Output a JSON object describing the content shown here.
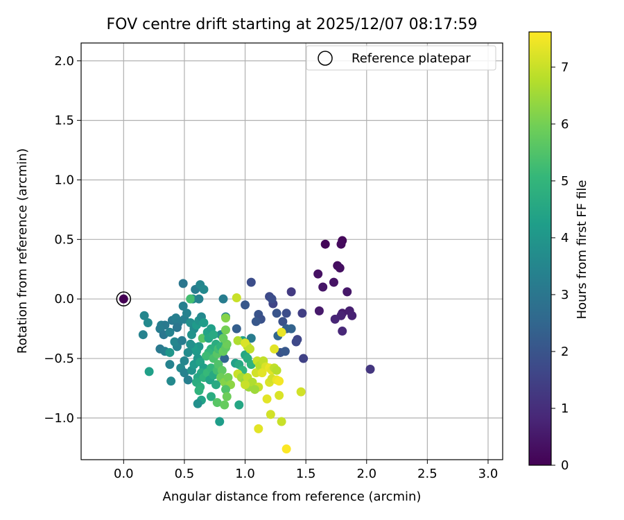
{
  "chart_data": {
    "type": "scatter",
    "title": "FOV centre drift starting at 2025/12/07 08:17:59",
    "xlabel": "Angular distance from reference (arcmin)",
    "ylabel": "Rotation from reference (arcmin)",
    "xlim": [
      -0.35,
      3.12
    ],
    "ylim": [
      -1.35,
      2.15
    ],
    "xticks": [
      0.0,
      0.5,
      1.0,
      1.5,
      2.0,
      2.5,
      3.0
    ],
    "xtick_labels": [
      "0.0",
      "0.5",
      "1.0",
      "1.5",
      "2.0",
      "2.5",
      "3.0"
    ],
    "yticks": [
      -1.0,
      -0.5,
      0.0,
      0.5,
      1.0,
      1.5,
      2.0
    ],
    "ytick_labels": [
      "−1.0",
      "−0.5",
      "0.0",
      "0.5",
      "1.0",
      "1.5",
      "2.0"
    ],
    "grid": true,
    "legend": {
      "position": "top-right",
      "entries": [
        "Reference platepar"
      ]
    },
    "reference_point": {
      "x": 0.0,
      "y": 0.0,
      "c": 0.0
    },
    "colorbar": {
      "label": "Hours from first FF file",
      "range": [
        0,
        7.62
      ],
      "ticks": [
        0,
        1,
        2,
        3,
        4,
        5,
        6,
        7
      ],
      "tick_labels": [
        "0",
        "1",
        "2",
        "3",
        "4",
        "5",
        "6",
        "7"
      ],
      "colormap": "viridis",
      "colors": [
        "#440154",
        "#482878",
        "#3e4989",
        "#31688e",
        "#26828e",
        "#1f9e89",
        "#35b779",
        "#6ece58",
        "#b5de2b",
        "#fde725"
      ]
    },
    "points": [
      {
        "x": 1.66,
        "y": 0.46,
        "c": 0.1
      },
      {
        "x": 1.8,
        "y": 0.49,
        "c": 0.15
      },
      {
        "x": 1.79,
        "y": 0.46,
        "c": 0.2
      },
      {
        "x": 1.76,
        "y": 0.28,
        "c": 0.25
      },
      {
        "x": 1.78,
        "y": 0.26,
        "c": 0.3
      },
      {
        "x": 1.6,
        "y": 0.21,
        "c": 0.35
      },
      {
        "x": 1.73,
        "y": 0.14,
        "c": 0.4
      },
      {
        "x": 1.64,
        "y": 0.1,
        "c": 0.45
      },
      {
        "x": 1.84,
        "y": 0.06,
        "c": 0.5
      },
      {
        "x": 1.61,
        "y": -0.1,
        "c": 0.55
      },
      {
        "x": 1.8,
        "y": -0.12,
        "c": 0.6
      },
      {
        "x": 1.86,
        "y": -0.1,
        "c": 0.65
      },
      {
        "x": 1.88,
        "y": -0.14,
        "c": 0.7
      },
      {
        "x": 1.79,
        "y": -0.14,
        "c": 0.75
      },
      {
        "x": 1.74,
        "y": -0.17,
        "c": 0.8
      },
      {
        "x": 1.8,
        "y": -0.27,
        "c": 0.85
      },
      {
        "x": 2.03,
        "y": -0.59,
        "c": 1.2
      },
      {
        "x": 1.38,
        "y": 0.06,
        "c": 1.3
      },
      {
        "x": 1.47,
        "y": -0.12,
        "c": 1.4
      },
      {
        "x": 1.48,
        "y": -0.5,
        "c": 1.5
      },
      {
        "x": 1.43,
        "y": -0.34,
        "c": 1.6
      },
      {
        "x": 1.42,
        "y": -0.36,
        "c": 1.7
      },
      {
        "x": 1.34,
        "y": -0.12,
        "c": 1.8
      },
      {
        "x": 1.31,
        "y": -0.19,
        "c": 1.9
      },
      {
        "x": 1.29,
        "y": -0.45,
        "c": 2.0
      },
      {
        "x": 1.33,
        "y": -0.44,
        "c": 2.1
      },
      {
        "x": 1.23,
        "y": -0.04,
        "c": 1.6
      },
      {
        "x": 1.2,
        "y": 0.02,
        "c": 1.7
      },
      {
        "x": 1.22,
        "y": 0.0,
        "c": 1.8
      },
      {
        "x": 1.26,
        "y": -0.12,
        "c": 2.0
      },
      {
        "x": 1.11,
        "y": -0.13,
        "c": 2.0
      },
      {
        "x": 1.13,
        "y": -0.17,
        "c": 1.9
      },
      {
        "x": 1.09,
        "y": -0.19,
        "c": 2.1
      },
      {
        "x": 1.34,
        "y": -0.25,
        "c": 2.3
      },
      {
        "x": 1.38,
        "y": -0.25,
        "c": 2.4
      },
      {
        "x": 1.27,
        "y": -0.31,
        "c": 2.5
      },
      {
        "x": 1.05,
        "y": 0.14,
        "c": 1.8
      },
      {
        "x": 1.0,
        "y": -0.05,
        "c": 2.1
      },
      {
        "x": 0.93,
        "y": -0.25,
        "c": 2.3
      },
      {
        "x": 0.83,
        "y": -0.5,
        "c": 2.5
      },
      {
        "x": 0.82,
        "y": 0.0,
        "c": 3.2
      },
      {
        "x": 0.84,
        "y": -0.15,
        "c": 3.4
      },
      {
        "x": 0.8,
        "y": -0.3,
        "c": 3.6
      },
      {
        "x": 0.49,
        "y": 0.13,
        "c": 3.0
      },
      {
        "x": 0.59,
        "y": 0.08,
        "c": 3.2
      },
      {
        "x": 0.63,
        "y": 0.12,
        "c": 3.5
      },
      {
        "x": 0.66,
        "y": 0.08,
        "c": 3.6
      },
      {
        "x": 0.57,
        "y": 0.0,
        "c": 3.7
      },
      {
        "x": 0.55,
        "y": 0.0,
        "c": 5.3
      },
      {
        "x": 0.62,
        "y": 0.0,
        "c": 3.4
      },
      {
        "x": 0.49,
        "y": -0.06,
        "c": 3.3
      },
      {
        "x": 0.17,
        "y": -0.14,
        "c": 3.5
      },
      {
        "x": 0.2,
        "y": -0.2,
        "c": 3.6
      },
      {
        "x": 0.16,
        "y": -0.3,
        "c": 3.4
      },
      {
        "x": 0.31,
        "y": -0.22,
        "c": 3.3
      },
      {
        "x": 0.34,
        "y": -0.22,
        "c": 3.1
      },
      {
        "x": 0.3,
        "y": -0.25,
        "c": 3.2
      },
      {
        "x": 0.33,
        "y": -0.3,
        "c": 3.0
      },
      {
        "x": 0.4,
        "y": -0.18,
        "c": 3.1
      },
      {
        "x": 0.43,
        "y": -0.16,
        "c": 3.3
      },
      {
        "x": 0.45,
        "y": -0.2,
        "c": 3.2
      },
      {
        "x": 0.38,
        "y": -0.28,
        "c": 3.4
      },
      {
        "x": 0.44,
        "y": -0.24,
        "c": 3.0
      },
      {
        "x": 0.3,
        "y": -0.42,
        "c": 3.1
      },
      {
        "x": 0.34,
        "y": -0.44,
        "c": 3.3
      },
      {
        "x": 0.38,
        "y": -0.45,
        "c": 4.0
      },
      {
        "x": 0.44,
        "y": -0.4,
        "c": 3.4
      },
      {
        "x": 0.42,
        "y": -0.36,
        "c": 3.5
      },
      {
        "x": 0.48,
        "y": -0.35,
        "c": 3.2
      },
      {
        "x": 0.5,
        "y": -0.17,
        "c": 3.3
      },
      {
        "x": 0.52,
        "y": -0.12,
        "c": 3.4
      },
      {
        "x": 0.55,
        "y": -0.2,
        "c": 3.8
      },
      {
        "x": 0.58,
        "y": -0.25,
        "c": 3.7
      },
      {
        "x": 0.56,
        "y": -0.3,
        "c": 3.9
      },
      {
        "x": 0.6,
        "y": -0.22,
        "c": 4.1
      },
      {
        "x": 0.62,
        "y": -0.18,
        "c": 3.9
      },
      {
        "x": 0.64,
        "y": -0.15,
        "c": 3.6
      },
      {
        "x": 0.66,
        "y": -0.2,
        "c": 4.2
      },
      {
        "x": 0.65,
        "y": -0.33,
        "c": 5.6
      },
      {
        "x": 0.69,
        "y": -0.28,
        "c": 4.4
      },
      {
        "x": 0.7,
        "y": -0.33,
        "c": 4.5
      },
      {
        "x": 0.72,
        "y": -0.25,
        "c": 4.3
      },
      {
        "x": 0.74,
        "y": -0.3,
        "c": 4.6
      },
      {
        "x": 0.76,
        "y": -0.38,
        "c": 4.7
      },
      {
        "x": 0.72,
        "y": -0.42,
        "c": 4.8
      },
      {
        "x": 0.7,
        "y": -0.45,
        "c": 5.0
      },
      {
        "x": 0.68,
        "y": -0.48,
        "c": 5.2
      },
      {
        "x": 0.74,
        "y": -0.5,
        "c": 5.4
      },
      {
        "x": 0.77,
        "y": -0.46,
        "c": 5.6
      },
      {
        "x": 0.78,
        "y": -0.42,
        "c": 5.3
      },
      {
        "x": 0.8,
        "y": -0.4,
        "c": 4.9
      },
      {
        "x": 0.82,
        "y": -0.44,
        "c": 5.8
      },
      {
        "x": 0.84,
        "y": -0.41,
        "c": 5.7
      },
      {
        "x": 0.85,
        "y": -0.38,
        "c": 5.9
      },
      {
        "x": 0.82,
        "y": -0.33,
        "c": 5.8
      },
      {
        "x": 0.84,
        "y": -0.26,
        "c": 6.0
      },
      {
        "x": 0.84,
        "y": -0.16,
        "c": 6.2
      },
      {
        "x": 0.62,
        "y": -0.4,
        "c": 4.0
      },
      {
        "x": 0.6,
        "y": -0.44,
        "c": 4.1
      },
      {
        "x": 0.57,
        "y": -0.4,
        "c": 4.2
      },
      {
        "x": 0.55,
        "y": -0.38,
        "c": 3.8
      },
      {
        "x": 0.53,
        "y": -0.45,
        "c": 3.7
      },
      {
        "x": 0.5,
        "y": -0.52,
        "c": 3.5
      },
      {
        "x": 0.47,
        "y": -0.58,
        "c": 3.6
      },
      {
        "x": 0.5,
        "y": -0.62,
        "c": 3.4
      },
      {
        "x": 0.53,
        "y": -0.68,
        "c": 3.3
      },
      {
        "x": 0.56,
        "y": -0.6,
        "c": 3.9
      },
      {
        "x": 0.58,
        "y": -0.55,
        "c": 4.1
      },
      {
        "x": 0.61,
        "y": -0.5,
        "c": 4.0
      },
      {
        "x": 0.63,
        "y": -0.53,
        "c": 4.4
      },
      {
        "x": 0.66,
        "y": -0.58,
        "c": 4.3
      },
      {
        "x": 0.64,
        "y": -0.62,
        "c": 4.6
      },
      {
        "x": 0.61,
        "y": -0.66,
        "c": 4.5
      },
      {
        "x": 0.6,
        "y": -0.7,
        "c": 4.7
      },
      {
        "x": 0.63,
        "y": -0.74,
        "c": 4.8
      },
      {
        "x": 0.66,
        "y": -0.66,
        "c": 4.9
      },
      {
        "x": 0.69,
        "y": -0.62,
        "c": 5.1
      },
      {
        "x": 0.72,
        "y": -0.58,
        "c": 5.0
      },
      {
        "x": 0.71,
        "y": -0.68,
        "c": 4.4
      },
      {
        "x": 0.74,
        "y": -0.64,
        "c": 4.6
      },
      {
        "x": 0.77,
        "y": -0.6,
        "c": 5.3
      },
      {
        "x": 0.78,
        "y": -0.55,
        "c": 5.5
      },
      {
        "x": 0.81,
        "y": -0.6,
        "c": 5.7
      },
      {
        "x": 0.8,
        "y": -0.66,
        "c": 5.9
      },
      {
        "x": 0.83,
        "y": -0.7,
        "c": 6.2
      },
      {
        "x": 0.86,
        "y": -0.66,
        "c": 6.0
      },
      {
        "x": 0.88,
        "y": -0.72,
        "c": 6.3
      },
      {
        "x": 0.84,
        "y": -0.76,
        "c": 5.5
      },
      {
        "x": 0.76,
        "y": -0.72,
        "c": 4.6
      },
      {
        "x": 0.72,
        "y": -0.82,
        "c": 4.7
      },
      {
        "x": 0.62,
        "y": -0.77,
        "c": 4.9
      },
      {
        "x": 0.64,
        "y": -0.85,
        "c": 4.4
      },
      {
        "x": 0.61,
        "y": -0.88,
        "c": 3.8
      },
      {
        "x": 0.77,
        "y": -0.87,
        "c": 5.6
      },
      {
        "x": 0.83,
        "y": -0.89,
        "c": 5.8
      },
      {
        "x": 0.85,
        "y": -0.82,
        "c": 5.9
      },
      {
        "x": 0.79,
        "y": -1.03,
        "c": 4.2
      },
      {
        "x": 0.95,
        "y": -0.89,
        "c": 4.5
      },
      {
        "x": 0.39,
        "y": -0.69,
        "c": 3.6
      },
      {
        "x": 0.21,
        "y": -0.61,
        "c": 4.3
      },
      {
        "x": 0.38,
        "y": -0.55,
        "c": 3.4
      },
      {
        "x": 0.92,
        "y": -0.54,
        "c": 4.3
      },
      {
        "x": 0.95,
        "y": -0.55,
        "c": 4.6
      },
      {
        "x": 0.98,
        "y": -0.6,
        "c": 5.0
      },
      {
        "x": 1.0,
        "y": -0.47,
        "c": 4.5
      },
      {
        "x": 1.02,
        "y": -0.5,
        "c": 4.7
      },
      {
        "x": 1.05,
        "y": -0.55,
        "c": 4.9
      },
      {
        "x": 0.98,
        "y": -0.35,
        "c": 4.4
      },
      {
        "x": 0.94,
        "y": -0.35,
        "c": 6.7
      },
      {
        "x": 1.02,
        "y": -0.4,
        "c": 6.8
      },
      {
        "x": 1.05,
        "y": -0.33,
        "c": 3.2
      },
      {
        "x": 0.93,
        "y": 0.01,
        "c": 7.0
      },
      {
        "x": 1.0,
        "y": -0.37,
        "c": 7.2
      },
      {
        "x": 1.04,
        "y": -0.42,
        "c": 6.9
      },
      {
        "x": 0.94,
        "y": -0.63,
        "c": 7.0
      },
      {
        "x": 0.97,
        "y": -0.66,
        "c": 6.6
      },
      {
        "x": 1.0,
        "y": -0.7,
        "c": 6.4
      },
      {
        "x": 1.02,
        "y": -0.66,
        "c": 6.9
      },
      {
        "x": 1.03,
        "y": -0.74,
        "c": 6.5
      },
      {
        "x": 1.06,
        "y": -0.7,
        "c": 6.7
      },
      {
        "x": 1.09,
        "y": -0.62,
        "c": 7.1
      },
      {
        "x": 1.1,
        "y": -0.52,
        "c": 7.0
      },
      {
        "x": 1.12,
        "y": -0.56,
        "c": 6.8
      },
      {
        "x": 1.15,
        "y": -0.52,
        "c": 6.9
      },
      {
        "x": 1.17,
        "y": -0.57,
        "c": 7.2
      },
      {
        "x": 1.2,
        "y": -0.58,
        "c": 7.4
      },
      {
        "x": 1.22,
        "y": -0.6,
        "c": 7.3
      },
      {
        "x": 1.14,
        "y": -0.62,
        "c": 7.3
      },
      {
        "x": 1.11,
        "y": -0.74,
        "c": 7.0
      },
      {
        "x": 1.2,
        "y": -0.7,
        "c": 7.2
      },
      {
        "x": 1.22,
        "y": -0.67,
        "c": 7.1
      },
      {
        "x": 1.26,
        "y": -0.68,
        "c": 7.4
      },
      {
        "x": 1.28,
        "y": -0.69,
        "c": 7.5
      },
      {
        "x": 1.24,
        "y": -0.58,
        "c": 6.9
      },
      {
        "x": 1.26,
        "y": -0.6,
        "c": 6.8
      },
      {
        "x": 1.24,
        "y": -0.42,
        "c": 7.3
      },
      {
        "x": 1.3,
        "y": -0.28,
        "c": 7.4
      },
      {
        "x": 1.08,
        "y": -0.76,
        "c": 6.5
      },
      {
        "x": 1.18,
        "y": -0.84,
        "c": 7.3
      },
      {
        "x": 1.28,
        "y": -0.81,
        "c": 7.2
      },
      {
        "x": 1.21,
        "y": -0.97,
        "c": 7.1
      },
      {
        "x": 1.3,
        "y": -1.03,
        "c": 7.0
      },
      {
        "x": 1.11,
        "y": -1.09,
        "c": 7.3
      },
      {
        "x": 1.34,
        "y": -1.26,
        "c": 7.6
      },
      {
        "x": 1.46,
        "y": -0.78,
        "c": 7.1
      },
      {
        "x": 1.0,
        "y": -0.72,
        "c": 7.0
      }
    ]
  }
}
